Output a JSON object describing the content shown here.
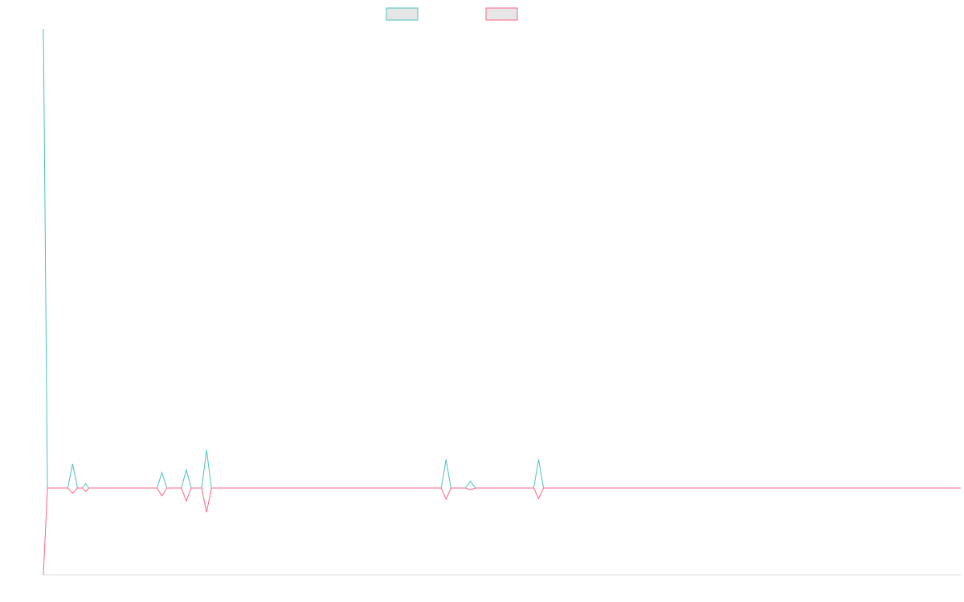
{
  "chart_data": {
    "type": "line",
    "title": "",
    "xlabel": "",
    "ylabel": "",
    "grid": false,
    "legend_position": "top-center",
    "ylim": [
      -100,
      530
    ],
    "xlim": [
      0,
      113
    ],
    "series": [
      {
        "color": "#4bc0c0",
        "points": [
          [
            0,
            530
          ],
          [
            0.5,
            0
          ],
          [
            3,
            0
          ],
          [
            3.6,
            28
          ],
          [
            4.2,
            0
          ],
          [
            4.8,
            0
          ],
          [
            5.2,
            5
          ],
          [
            5.6,
            0
          ],
          [
            14,
            0
          ],
          [
            14.6,
            18
          ],
          [
            15.2,
            0
          ],
          [
            17,
            0
          ],
          [
            17.6,
            21
          ],
          [
            18.2,
            0
          ],
          [
            19.5,
            0
          ],
          [
            20.1,
            44
          ],
          [
            20.7,
            0
          ],
          [
            49,
            0
          ],
          [
            49.6,
            33
          ],
          [
            50.2,
            0
          ],
          [
            52,
            0
          ],
          [
            52.6,
            8
          ],
          [
            53.2,
            0
          ],
          [
            60.4,
            0
          ],
          [
            61,
            33
          ],
          [
            61.6,
            0
          ],
          [
            113,
            0
          ]
        ]
      },
      {
        "color": "#ff6384",
        "points": [
          [
            0,
            -100
          ],
          [
            0.5,
            0
          ],
          [
            3,
            0
          ],
          [
            3.6,
            -6
          ],
          [
            4.2,
            0
          ],
          [
            4.8,
            0
          ],
          [
            5.2,
            -4
          ],
          [
            5.6,
            0
          ],
          [
            14,
            0
          ],
          [
            14.6,
            -9
          ],
          [
            15.2,
            0
          ],
          [
            17,
            0
          ],
          [
            17.6,
            -15
          ],
          [
            18.2,
            0
          ],
          [
            19.5,
            0
          ],
          [
            20.1,
            -28
          ],
          [
            20.7,
            0
          ],
          [
            49,
            0
          ],
          [
            49.6,
            -13
          ],
          [
            50.2,
            0
          ],
          [
            52,
            0
          ],
          [
            52.6,
            -2
          ],
          [
            53.2,
            0
          ],
          [
            60.4,
            0
          ],
          [
            61,
            -12
          ],
          [
            61.6,
            0
          ],
          [
            113,
            0
          ]
        ]
      }
    ]
  }
}
